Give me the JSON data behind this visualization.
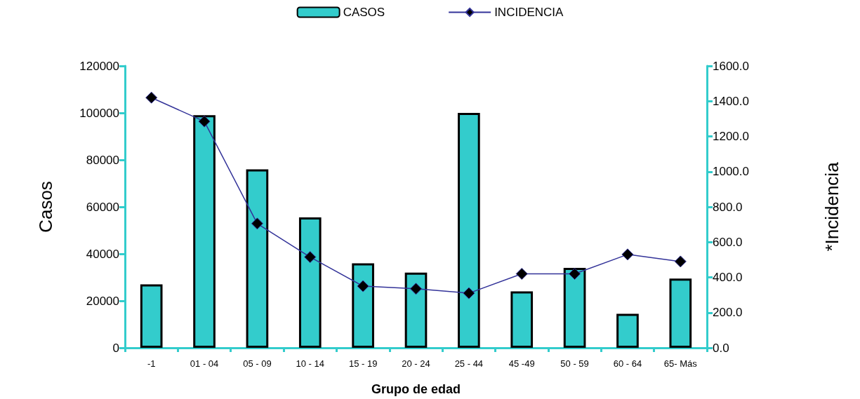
{
  "chart_data": {
    "type": "bar",
    "categories": [
      "-1",
      "01 - 04",
      "05 - 09",
      "10 - 14",
      "15 - 19",
      "20 - 24",
      "25 - 44",
      "45 -49",
      "50 - 59",
      "60 - 64",
      "65- Más"
    ],
    "series": [
      {
        "name": "CASOS",
        "color": "#33cccc",
        "values": [
          27000,
          99000,
          76000,
          55500,
          36000,
          32000,
          100000,
          24000,
          34000,
          14500,
          29500
        ]
      },
      {
        "name": "INCIDENCIA",
        "type": "line",
        "axis": "y2",
        "color": "#333399",
        "marker": "diamond",
        "values": [
          1420,
          1285,
          705,
          515,
          350,
          335,
          310,
          420,
          420,
          530,
          490
        ]
      }
    ],
    "xlabel": "Grupo de edad",
    "ylabel": "Casos",
    "y2label": "*Incidencia",
    "ylim": [
      0,
      120000
    ],
    "yticks": [
      0,
      20000,
      40000,
      60000,
      80000,
      100000,
      120000
    ],
    "y2lim": [
      0,
      1600
    ],
    "y2ticks": [
      {
        "value": 0,
        "label": "0.0"
      },
      {
        "value": 200,
        "label": "200.0"
      },
      {
        "value": 400,
        "label": "400.0"
      },
      {
        "value": 600,
        "label": "600.0"
      },
      {
        "value": 800,
        "label": "800.0"
      },
      {
        "value": 1000,
        "label": "1000.0"
      },
      {
        "value": 1200,
        "label": "1200.0"
      },
      {
        "value": 1400,
        "label": "1400.0"
      },
      {
        "value": 1600,
        "label": "1600.0"
      }
    ],
    "grid": false,
    "legend": "top"
  }
}
